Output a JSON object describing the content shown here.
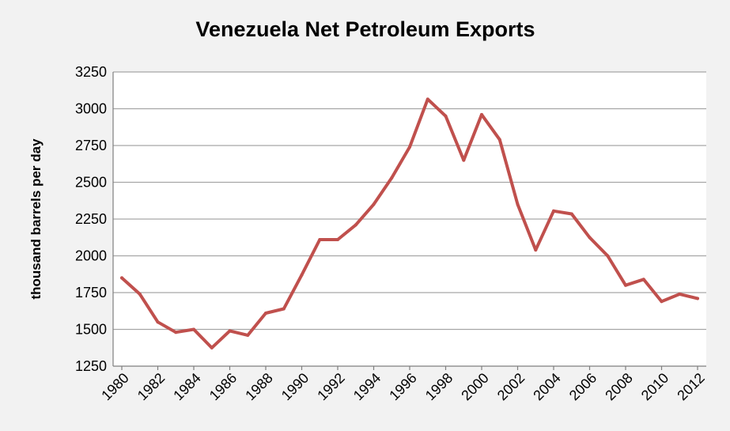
{
  "chart_data": {
    "type": "line",
    "title": "Venezuela Net Petroleum Exports",
    "xlabel": "",
    "ylabel": "thousand barrels per day",
    "ylim": [
      1250,
      3250
    ],
    "yticks": [
      1250,
      1500,
      1750,
      2000,
      2250,
      2500,
      2750,
      3000,
      3250
    ],
    "xlim": [
      1980,
      2012
    ],
    "xticks": [
      1980,
      1982,
      1984,
      1986,
      1988,
      1990,
      1992,
      1994,
      1996,
      1998,
      2000,
      2002,
      2004,
      2006,
      2008,
      2010,
      2012
    ],
    "grid": true,
    "legend": "none",
    "colors": {
      "line": "#c0504d",
      "plot_bg": "#ffffff",
      "page_bg": "#f2f2f2"
    },
    "series": [
      {
        "name": "Venezuela Net Petroleum Exports",
        "x": [
          1980,
          1981,
          1982,
          1983,
          1984,
          1985,
          1986,
          1987,
          1988,
          1989,
          1990,
          1991,
          1992,
          1993,
          1994,
          1995,
          1996,
          1997,
          1998,
          1999,
          2000,
          2001,
          2002,
          2003,
          2004,
          2005,
          2006,
          2007,
          2008,
          2009,
          2010,
          2011,
          2012
        ],
        "values": [
          1850,
          1740,
          1550,
          1480,
          1500,
          1375,
          1490,
          1460,
          1610,
          1640,
          1870,
          2110,
          2110,
          2210,
          2350,
          2530,
          2740,
          3065,
          2950,
          2650,
          2960,
          2790,
          2350,
          2040,
          2305,
          2285,
          2125,
          2000,
          1800,
          1840,
          1690,
          1740,
          1710
        ]
      }
    ]
  }
}
